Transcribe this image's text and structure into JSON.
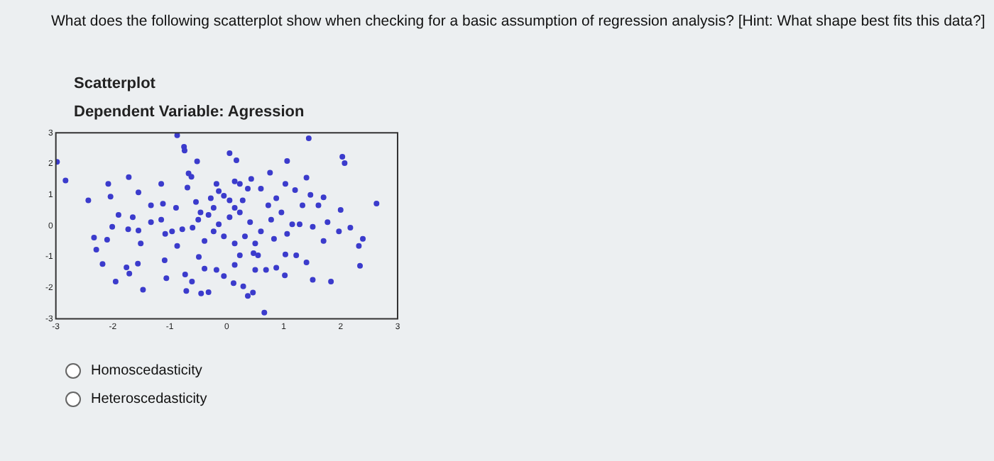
{
  "chart_data": {
    "type": "scatter",
    "title": "Scatterplot",
    "subtitle": "Dependent Variable: Agression",
    "annotations": [
      "What does the following scatterplot show when checking for a basic assumption of regression analysis? [Hint: What shape best fits this data?]",
      "Homoscedasticity",
      "Heteroscedasticity"
    ],
    "xlim": [
      -3,
      3
    ],
    "xticks": [
      -3,
      -2,
      -1,
      0,
      1,
      2,
      3
    ],
    "ylim": [
      -3,
      3
    ],
    "yticks": [
      -3,
      -2,
      -1,
      0,
      1,
      2,
      3
    ],
    "grid": false,
    "marker": "circle",
    "series": [
      {
        "color": "#3b3bcc",
        "x": [
          -2.98,
          -2.83,
          -2.43,
          -2.08,
          -2.04,
          -1.72,
          -1.55,
          -1.15,
          -0.87,
          -0.75,
          -0.74,
          -0.52,
          0.05,
          0.17,
          1.06,
          1.44,
          2.03,
          2.07,
          2.63,
          1.4,
          0.76,
          1.03,
          1.2,
          1.47,
          1.7,
          1.61,
          2.0,
          2.17,
          2.39,
          2.32,
          2.34,
          1.83,
          1.51,
          1.4,
          1.22,
          1.03,
          1.02,
          0.87,
          0.66,
          0.46,
          0.37,
          0.29,
          0.12,
          -0.32,
          -0.45,
          -0.71,
          -0.61,
          -0.73,
          -1.06,
          -1.47,
          -1.71,
          -1.76,
          -1.95,
          -2.18,
          -2.29,
          -2.33,
          -2.1,
          -2.01,
          -1.9,
          -1.65,
          -1.55,
          -1.51,
          -1.56,
          -1.33,
          -1.12,
          -1.33,
          -1.15,
          -1.08,
          -1.09,
          -0.87,
          -0.78,
          -0.89,
          -0.69,
          -0.67,
          -0.62,
          -0.54,
          -0.46,
          -0.6,
          -0.39,
          -0.49,
          -0.39,
          -0.18,
          -0.05,
          0.14,
          0.23,
          0.47,
          0.55,
          0.69,
          0.5,
          -0.28,
          -0.18,
          -0.14,
          -0.05,
          0.05,
          0.14,
          0.23,
          0.37,
          0.43,
          0.6,
          0.73,
          0.87,
          0.96,
          1.15,
          1.28,
          1.51,
          1.77,
          1.97,
          1.7,
          1.06,
          0.83,
          0.6,
          0.41,
          0.23,
          0.05,
          -0.14,
          -0.23,
          -0.05,
          0.14,
          0.32,
          0.5,
          -0.32,
          -0.5,
          -0.96,
          -1.73,
          -0.23,
          0.14,
          0.28,
          0.78,
          1.33
        ],
        "values": [
          2.06,
          1.46,
          0.82,
          1.35,
          0.94,
          1.57,
          1.08,
          1.35,
          2.92,
          2.55,
          2.43,
          2.08,
          2.34,
          2.11,
          2.09,
          2.82,
          2.23,
          2.02,
          0.72,
          1.55,
          1.71,
          1.35,
          1.15,
          1.0,
          0.92,
          0.66,
          0.51,
          -0.06,
          -0.42,
          -0.65,
          -1.29,
          -1.8,
          -1.74,
          -1.18,
          -0.95,
          -0.92,
          -1.6,
          -1.35,
          -2.8,
          -2.15,
          -2.26,
          -1.95,
          -1.85,
          -2.14,
          -2.18,
          -2.1,
          -1.8,
          -1.57,
          -1.69,
          -2.06,
          -1.54,
          -1.34,
          -1.8,
          -1.23,
          -0.77,
          -0.38,
          -0.45,
          -0.03,
          0.35,
          0.28,
          -0.15,
          -0.57,
          -1.22,
          0.66,
          0.71,
          0.12,
          0.2,
          -0.26,
          -1.11,
          -0.65,
          -0.11,
          0.58,
          1.23,
          1.69,
          1.58,
          0.77,
          0.43,
          -0.06,
          -0.49,
          -1.0,
          -1.38,
          -1.42,
          -1.62,
          -1.26,
          -0.95,
          -0.88,
          -0.95,
          -1.42,
          -1.42,
          0.89,
          1.35,
          1.12,
          0.97,
          0.82,
          1.43,
          1.35,
          1.2,
          1.51,
          1.2,
          0.66,
          0.89,
          0.43,
          0.05,
          0.05,
          -0.03,
          0.12,
          -0.18,
          -0.49,
          -0.26,
          -0.42,
          -0.18,
          0.12,
          0.43,
          0.28,
          0.05,
          -0.18,
          -0.34,
          -0.57,
          -0.34,
          -0.57,
          0.35,
          0.2,
          -0.18,
          -0.11,
          0.58,
          0.58,
          0.82,
          0.2,
          0.66
        ]
      }
    ]
  }
}
